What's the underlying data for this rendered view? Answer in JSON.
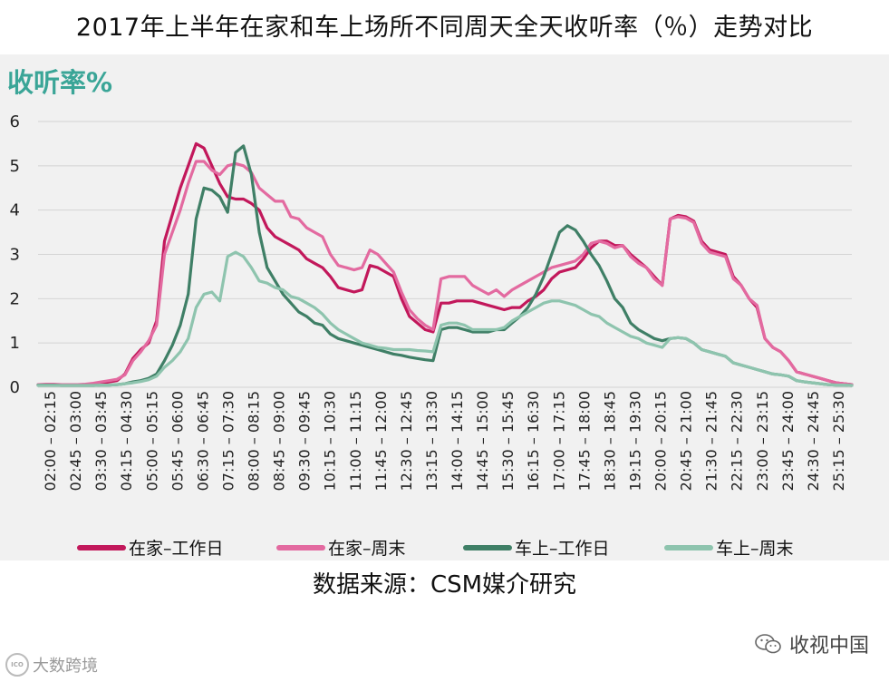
{
  "title": "2017年上半年在家和车上场所不同周天全天收听率（％）走势对比",
  "source": "数据来源：CSM媒介研究",
  "watermark_right": "收视中国",
  "watermark_left": "大数跨境",
  "watermark_left_logo": "ICO",
  "chart_data": {
    "type": "line",
    "ylabel": "收听率%",
    "ylim": [
      0,
      6
    ],
    "yticks": [
      "0",
      "1",
      "2",
      "3",
      "4",
      "5",
      "6"
    ],
    "grid": true,
    "legend_position": "bottom",
    "xtick_labels": [
      "02:00 – 02:15",
      "02:45 – 03:00",
      "03:30 – 03:45",
      "04:15 – 04:30",
      "05:00 – 05:15",
      "05:45 – 06:00",
      "06:30 – 06:45",
      "07:15 – 07:30",
      "08:00 – 08:15",
      "08:45 – 09:00",
      "09:30 – 09:45",
      "10:15 – 10:30",
      "11:00 – 11:15",
      "11:45 – 12:00",
      "12:30 – 12:45",
      "13:15 – 13:30",
      "14:00 – 14:15",
      "14:45 – 15:00",
      "15:30 – 15:45",
      "16:15 – 16:30",
      "17:00 – 17:15",
      "17:45 – 18:00",
      "18:30 – 18:45",
      "19:15 – 19:30",
      "20:00 – 20:15",
      "20:45 – 21:00",
      "21:30 – 21:45",
      "22:15 – 22:30",
      "23:00 – 23:15",
      "23:45 – 24:00",
      "24:30 – 24:45",
      "25:15 – 25:30"
    ],
    "series": [
      {
        "name": "在家–工作日",
        "color": "#c2185b",
        "values": [
          0.05,
          0.06,
          0.06,
          0.05,
          0.05,
          0.05,
          0.06,
          0.08,
          0.1,
          0.12,
          0.15,
          0.3,
          0.65,
          0.85,
          1.0,
          1.5,
          3.3,
          3.9,
          4.5,
          5.0,
          5.5,
          5.4,
          5.0,
          4.6,
          4.3,
          4.25,
          4.25,
          4.15,
          4.0,
          3.6,
          3.4,
          3.3,
          3.2,
          3.1,
          2.9,
          2.8,
          2.7,
          2.5,
          2.25,
          2.2,
          2.15,
          2.2,
          2.75,
          2.7,
          2.6,
          2.5,
          2.0,
          1.6,
          1.45,
          1.3,
          1.25,
          1.9,
          1.9,
          1.95,
          1.95,
          1.95,
          1.9,
          1.85,
          1.8,
          1.75,
          1.8,
          1.8,
          1.95,
          2.05,
          2.2,
          2.45,
          2.6,
          2.65,
          2.7,
          2.9,
          3.15,
          3.3,
          3.3,
          3.2,
          3.2,
          3.0,
          2.85,
          2.7,
          2.5,
          2.3,
          3.8,
          3.88,
          3.85,
          3.75,
          3.3,
          3.1,
          3.05,
          3.0,
          2.5,
          2.3,
          2.0,
          1.8,
          1.1,
          0.9,
          0.8,
          0.6,
          0.35,
          0.3,
          0.25,
          0.2,
          0.15,
          0.1,
          0.08,
          0.06
        ]
      },
      {
        "name": "在家–周末",
        "color": "#e36aa0",
        "values": [
          0.06,
          0.07,
          0.07,
          0.06,
          0.06,
          0.06,
          0.07,
          0.09,
          0.12,
          0.15,
          0.18,
          0.28,
          0.6,
          0.8,
          1.05,
          1.4,
          3.0,
          3.5,
          4.0,
          4.6,
          5.1,
          5.1,
          4.9,
          4.8,
          5.0,
          5.05,
          5.0,
          4.85,
          4.5,
          4.35,
          4.2,
          4.2,
          3.85,
          3.8,
          3.6,
          3.5,
          3.4,
          3.0,
          2.75,
          2.7,
          2.65,
          2.7,
          3.1,
          3.0,
          2.8,
          2.6,
          2.15,
          1.75,
          1.55,
          1.4,
          1.3,
          2.45,
          2.5,
          2.5,
          2.5,
          2.3,
          2.2,
          2.1,
          2.2,
          2.05,
          2.2,
          2.3,
          2.4,
          2.5,
          2.6,
          2.7,
          2.75,
          2.8,
          2.85,
          3.0,
          3.25,
          3.3,
          3.25,
          3.15,
          3.2,
          2.95,
          2.8,
          2.7,
          2.45,
          2.3,
          3.8,
          3.85,
          3.82,
          3.72,
          3.25,
          3.05,
          3.0,
          2.95,
          2.45,
          2.3,
          2.0,
          1.85,
          1.1,
          0.9,
          0.8,
          0.6,
          0.35,
          0.3,
          0.25,
          0.2,
          0.15,
          0.1,
          0.08,
          0.06
        ]
      },
      {
        "name": "车上–工作日",
        "color": "#3f7f66",
        "values": [
          0.05,
          0.05,
          0.05,
          0.04,
          0.04,
          0.04,
          0.04,
          0.04,
          0.05,
          0.05,
          0.06,
          0.08,
          0.12,
          0.15,
          0.2,
          0.3,
          0.6,
          0.95,
          1.4,
          2.1,
          3.8,
          4.5,
          4.45,
          4.3,
          3.95,
          5.3,
          5.45,
          4.8,
          3.5,
          2.7,
          2.4,
          2.1,
          1.9,
          1.7,
          1.6,
          1.45,
          1.4,
          1.2,
          1.1,
          1.05,
          1.0,
          0.95,
          0.9,
          0.85,
          0.8,
          0.75,
          0.72,
          0.68,
          0.65,
          0.62,
          0.6,
          1.3,
          1.35,
          1.35,
          1.3,
          1.25,
          1.25,
          1.25,
          1.3,
          1.3,
          1.45,
          1.6,
          1.8,
          2.1,
          2.5,
          3.0,
          3.5,
          3.65,
          3.55,
          3.3,
          3.0,
          2.75,
          2.4,
          2.0,
          1.8,
          1.45,
          1.3,
          1.2,
          1.1,
          1.05,
          1.1,
          1.12,
          1.1,
          1.0,
          0.85,
          0.8,
          0.75,
          0.7,
          0.55,
          0.5,
          0.45,
          0.4,
          0.35,
          0.3,
          0.28,
          0.25,
          0.15,
          0.12,
          0.1,
          0.08,
          0.06,
          0.05,
          0.05,
          0.04
        ]
      },
      {
        "name": "车上–周末",
        "color": "#8ec4ae",
        "values": [
          0.04,
          0.04,
          0.04,
          0.04,
          0.04,
          0.04,
          0.04,
          0.04,
          0.05,
          0.05,
          0.06,
          0.08,
          0.1,
          0.13,
          0.17,
          0.25,
          0.45,
          0.6,
          0.8,
          1.1,
          1.8,
          2.1,
          2.15,
          1.95,
          2.95,
          3.05,
          2.95,
          2.7,
          2.4,
          2.35,
          2.25,
          2.2,
          2.05,
          2.0,
          1.9,
          1.8,
          1.65,
          1.45,
          1.3,
          1.2,
          1.1,
          1.0,
          0.95,
          0.9,
          0.88,
          0.85,
          0.85,
          0.85,
          0.83,
          0.82,
          0.8,
          1.4,
          1.45,
          1.45,
          1.4,
          1.3,
          1.3,
          1.3,
          1.3,
          1.35,
          1.5,
          1.6,
          1.7,
          1.8,
          1.9,
          1.95,
          1.95,
          1.9,
          1.85,
          1.75,
          1.65,
          1.6,
          1.45,
          1.35,
          1.25,
          1.15,
          1.1,
          1.0,
          0.95,
          0.9,
          1.1,
          1.12,
          1.1,
          1.0,
          0.85,
          0.8,
          0.75,
          0.7,
          0.55,
          0.5,
          0.45,
          0.4,
          0.35,
          0.3,
          0.28,
          0.25,
          0.15,
          0.12,
          0.1,
          0.08,
          0.06,
          0.05,
          0.05,
          0.04
        ]
      }
    ]
  }
}
